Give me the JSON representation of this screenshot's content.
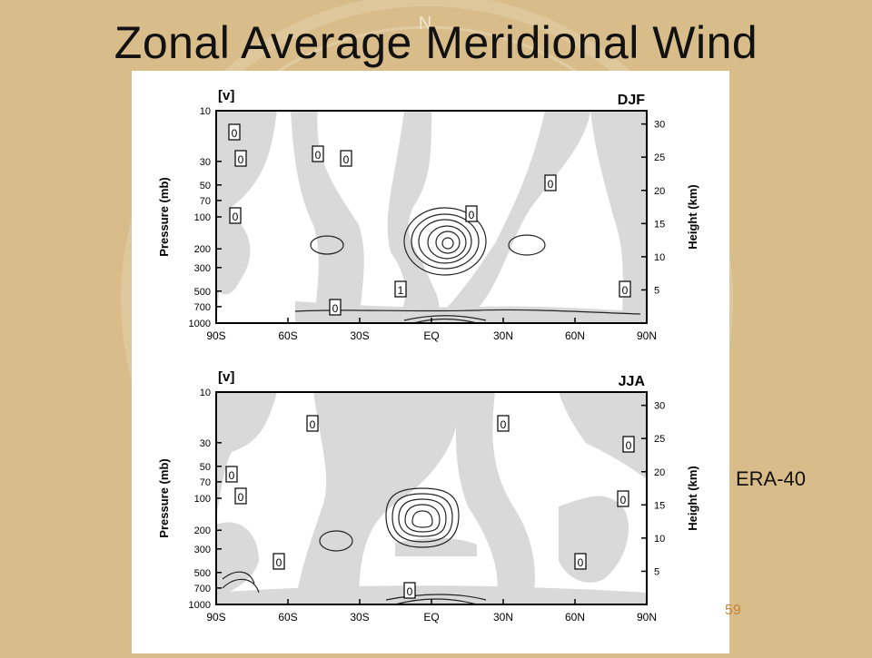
{
  "slide": {
    "title": "Zonal Average Meridional Wind",
    "source_label": "ERA-40",
    "slide_number": "59",
    "compass_letter": "N"
  },
  "colors": {
    "background": "#d8bc8a",
    "panel": "#ffffff",
    "shading": "#d9d9d9",
    "contour": "#222222",
    "slide_number": "#c8843a"
  },
  "chart_data": [
    {
      "type": "heatmap",
      "panel_label": "[v]",
      "season": "DJF",
      "ylabel_left": "Pressure (mb)",
      "ylabel_right": "Height (km)",
      "x_ticks": [
        "90S",
        "60S",
        "30S",
        "EQ",
        "30N",
        "60N",
        "90N"
      ],
      "y_ticks_left": [
        "10",
        "30",
        "50",
        "70",
        "100",
        "200",
        "300",
        "500",
        "700",
        "1000"
      ],
      "y_ticks_right": [
        "30",
        "25",
        "20",
        "15",
        "10",
        "5"
      ],
      "contour_labels": [
        "0",
        "0",
        "0",
        "0",
        "0",
        "0",
        "1",
        "0",
        "0",
        "0"
      ],
      "shading": "negative values shaded"
    },
    {
      "type": "heatmap",
      "panel_label": "[v]",
      "season": "JJA",
      "ylabel_left": "Pressure (mb)",
      "ylabel_right": "Height (km)",
      "x_ticks": [
        "90S",
        "60S",
        "30S",
        "EQ",
        "30N",
        "60N",
        "90N"
      ],
      "y_ticks_left": [
        "10",
        "30",
        "50",
        "70",
        "100",
        "200",
        "300",
        "500",
        "700",
        "1000"
      ],
      "y_ticks_right": [
        "30",
        "25",
        "20",
        "15",
        "10",
        "5"
      ],
      "contour_labels": [
        "0",
        "0",
        "0",
        "0",
        "0",
        "0",
        "0",
        "0",
        "0"
      ],
      "shading": "negative values shaded"
    }
  ]
}
